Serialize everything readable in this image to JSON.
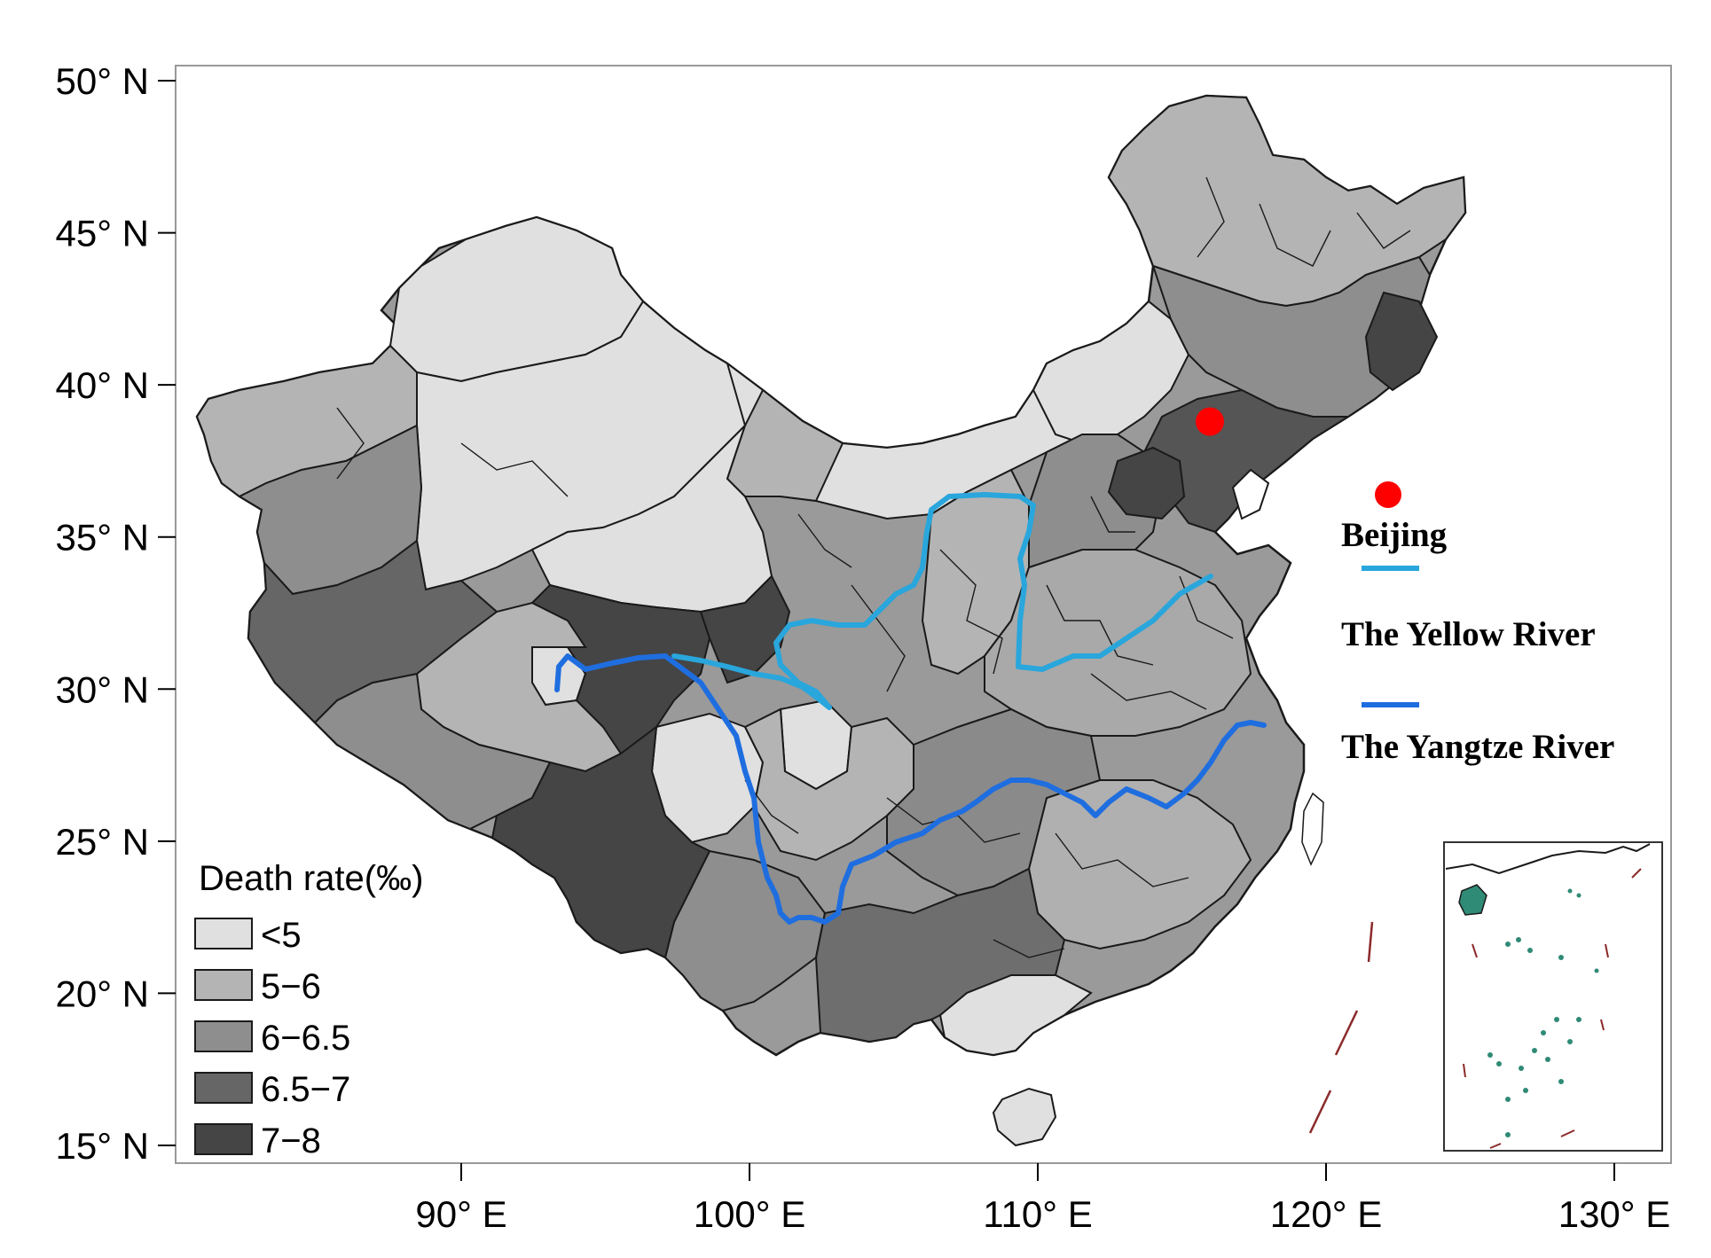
{
  "map": {
    "axes": {
      "lat_ticks": [
        {
          "value": 50,
          "label": "50° N"
        },
        {
          "value": 45,
          "label": "45° N"
        },
        {
          "value": 40,
          "label": "40° N"
        },
        {
          "value": 35,
          "label": "35° N"
        },
        {
          "value": 30,
          "label": "30° N"
        },
        {
          "value": 25,
          "label": "25° N"
        },
        {
          "value": 20,
          "label": "20° N"
        },
        {
          "value": 15,
          "label": "15° N"
        }
      ],
      "lon_ticks": [
        {
          "value": 90,
          "label": "90° E"
        },
        {
          "value": 100,
          "label": "100° E"
        },
        {
          "value": 110,
          "label": "110° E"
        },
        {
          "value": 120,
          "label": "120° E"
        },
        {
          "value": 130,
          "label": "130° E"
        }
      ]
    },
    "legend": {
      "title": "Death rate(‰)",
      "placement": "bottom-left",
      "classes": [
        {
          "label": "<5",
          "color": "#e0e0e0"
        },
        {
          "label": "5−6",
          "color": "#b4b4b4"
        },
        {
          "label": "6−6.5",
          "color": "#8e8e8e"
        },
        {
          "label": "6.5−7",
          "color": "#666666"
        },
        {
          "label": "7−8",
          "color": "#454545"
        }
      ]
    },
    "key": {
      "beijing": {
        "label": "Beijing",
        "color": "#ff0000"
      },
      "yellow_river": {
        "label": "The Yellow River",
        "color": "#29a6dc"
      },
      "yangtze_river": {
        "label": "The Yangtze River",
        "color": "#1f6ee0"
      }
    },
    "city": {
      "name": "Beijing",
      "lon": 116.4,
      "lat": 39.9
    },
    "inset": "South China Sea islands inset",
    "colors": {
      "outline": "#1a1a1a",
      "frame": "#999999"
    }
  }
}
